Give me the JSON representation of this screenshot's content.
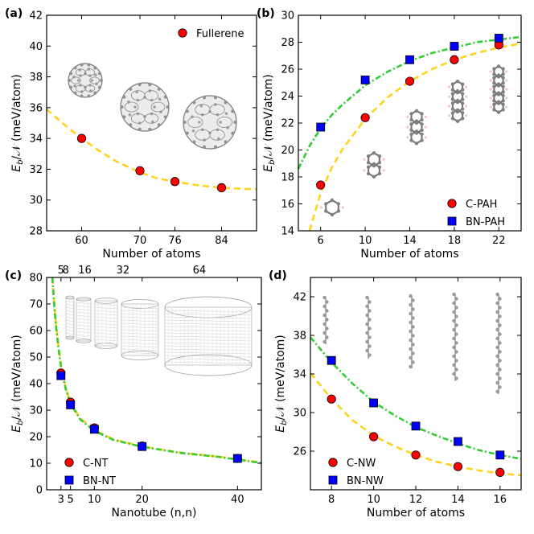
{
  "panels": [
    {
      "id": "a",
      "label": "(a)",
      "xlabel": "Number of atoms",
      "ylabel_main": "E",
      "ylabel_sub": "b",
      "ylabel_rest": "/𝒩 (meV/atom)",
      "xlim": [
        54,
        90
      ],
      "ylim": [
        28,
        42
      ],
      "xticks": [
        60,
        70,
        76,
        84
      ],
      "yticks": [
        28,
        30,
        32,
        34,
        36,
        38,
        40,
        42
      ],
      "legend_pos": "top-right",
      "series": [
        {
          "name": "Fullerene",
          "marker": "circle",
          "color": "#ff0000",
          "x": [
            60,
            70,
            76,
            84
          ],
          "y": [
            34.0,
            31.9,
            31.2,
            30.8
          ]
        }
      ],
      "fits": [
        {
          "color": "#ffd21e",
          "style": "dashed",
          "x": [
            54,
            57,
            60,
            63,
            66,
            70,
            73,
            76,
            80,
            84,
            88,
            90
          ],
          "y": [
            35.9,
            34.9,
            34.0,
            33.2,
            32.5,
            31.8,
            31.4,
            31.2,
            30.95,
            30.8,
            30.72,
            30.7
          ]
        }
      ]
    },
    {
      "id": "b",
      "label": "(b)",
      "xlabel": "Number of atoms",
      "ylabel_main": "E",
      "ylabel_sub": "b",
      "ylabel_rest": "/𝒩 (meV/atom)",
      "xlim": [
        4,
        24
      ],
      "ylim": [
        14,
        30
      ],
      "xticks": [
        6,
        10,
        14,
        18,
        22
      ],
      "yticks": [
        14,
        16,
        18,
        20,
        22,
        24,
        26,
        28,
        30
      ],
      "legend_pos": "bottom-right",
      "series": [
        {
          "name": "C-PAH",
          "marker": "circle",
          "color": "#ff0000",
          "x": [
            6,
            10,
            14,
            18,
            22
          ],
          "y": [
            17.4,
            22.4,
            25.1,
            26.7,
            27.8
          ]
        },
        {
          "name": "BN-PAH",
          "marker": "square",
          "color": "#0000ff",
          "x": [
            6,
            10,
            14,
            18,
            22
          ],
          "y": [
            21.7,
            25.2,
            26.7,
            27.7,
            28.3
          ]
        }
      ],
      "fits": [
        {
          "color": "#ffd21e",
          "style": "dashed",
          "x": [
            5,
            6,
            7,
            8,
            10,
            12,
            14,
            16,
            18,
            20,
            22,
            24
          ],
          "y": [
            14.0,
            16.8,
            18.7,
            20.1,
            22.3,
            23.9,
            25.1,
            26.0,
            26.7,
            27.2,
            27.6,
            27.9
          ]
        },
        {
          "color": "#33cc33",
          "style": "dashdot",
          "x": [
            4,
            5,
            6,
            7,
            8,
            10,
            12,
            14,
            16,
            18,
            20,
            22,
            24
          ],
          "y": [
            18.6,
            20.3,
            21.6,
            22.6,
            23.4,
            24.8,
            25.8,
            26.6,
            27.2,
            27.6,
            28.0,
            28.2,
            28.4
          ]
        }
      ]
    },
    {
      "id": "c",
      "label": "(c)",
      "xlabel": "Nanotube (n,n)",
      "ylabel_main": "E",
      "ylabel_sub": "b",
      "ylabel_rest": "/𝒩 (meV/atom)",
      "xlim": [
        0,
        45
      ],
      "ylim": [
        0,
        80
      ],
      "xticks": [
        3,
        5,
        10,
        20,
        40
      ],
      "yticks": [
        0,
        10,
        20,
        30,
        40,
        50,
        60,
        70,
        80
      ],
      "top_ticks_x": [
        3,
        4,
        8,
        16,
        32
      ],
      "top_ticks_label": [
        "5",
        "8",
        "16",
        "32",
        "64"
      ],
      "top_tick_pos": [
        3,
        4,
        8,
        16,
        32
      ],
      "legend_pos": "bottom-left",
      "series": [
        {
          "name": "C-NT",
          "marker": "circle",
          "color": "#ff0000",
          "x": [
            3,
            5,
            10,
            20,
            40
          ],
          "y": [
            44.0,
            33.0,
            23.3,
            16.5,
            11.8
          ]
        },
        {
          "name": "BN-NT",
          "marker": "square",
          "color": "#0000ff",
          "x": [
            3,
            5,
            10,
            20,
            40
          ],
          "y": [
            43.0,
            32.0,
            22.8,
            16.3,
            11.8
          ]
        }
      ],
      "fits": [
        {
          "color": "#ffd21e",
          "style": "dashed",
          "x": [
            1.2,
            1.6,
            2,
            2.5,
            3,
            4,
            5,
            7,
            10,
            14,
            20,
            28,
            36,
            45
          ],
          "y": [
            80,
            70,
            62,
            54,
            47,
            38.5,
            33,
            27,
            22.5,
            19,
            16.3,
            14,
            12.5,
            10.2
          ]
        },
        {
          "color": "#33cc33",
          "style": "dashdot",
          "x": [
            1.2,
            1.6,
            2,
            2.5,
            3,
            4,
            5,
            7,
            10,
            14,
            20,
            28,
            36,
            45
          ],
          "y": [
            80,
            69,
            61,
            53,
            46.5,
            38,
            32.5,
            26.6,
            22.2,
            18.8,
            16.2,
            13.9,
            12.4,
            10.1
          ]
        }
      ]
    },
    {
      "id": "d",
      "label": "(d)",
      "xlabel": "Number of atoms",
      "ylabel_main": "E",
      "ylabel_sub": "b",
      "ylabel_rest": "/𝒩 (meV/atom)",
      "xlim": [
        7,
        17
      ],
      "ylim": [
        22,
        44
      ],
      "xticks": [
        8,
        10,
        12,
        14,
        16
      ],
      "yticks": [
        26,
        30,
        34,
        38,
        42
      ],
      "legend_pos": "bottom-left",
      "series": [
        {
          "name": "C-NW",
          "marker": "circle",
          "color": "#ff0000",
          "x": [
            8,
            10,
            12,
            14,
            16
          ],
          "y": [
            31.4,
            27.5,
            25.6,
            24.4,
            23.8
          ]
        },
        {
          "name": "BN-NW",
          "marker": "square",
          "color": "#0000ff",
          "x": [
            8,
            10,
            12,
            14,
            16
          ],
          "y": [
            35.4,
            31.0,
            28.6,
            27.0,
            25.6
          ]
        }
      ],
      "fits": [
        {
          "color": "#ffd21e",
          "style": "dashed",
          "x": [
            7,
            8,
            9,
            10,
            11,
            12,
            13,
            14,
            15,
            16,
            17
          ],
          "y": [
            34.1,
            31.4,
            29.2,
            27.6,
            26.5,
            25.6,
            24.9,
            24.4,
            24.0,
            23.7,
            23.5
          ]
        },
        {
          "color": "#33cc33",
          "style": "dashdot",
          "x": [
            7,
            8,
            9,
            10,
            11,
            12,
            13,
            14,
            15,
            16,
            17
          ],
          "y": [
            37.8,
            35.2,
            33.0,
            31.1,
            29.7,
            28.5,
            27.6,
            26.8,
            26.1,
            25.6,
            25.2
          ]
        }
      ]
    }
  ],
  "chart_data": [
    {
      "type": "scatter",
      "title": "(a)",
      "xlabel": "Number of atoms",
      "ylabel": "Eb/N (meV/atom)",
      "xlim": [
        54,
        90
      ],
      "ylim": [
        28,
        42
      ],
      "series": [
        {
          "name": "Fullerene",
          "x": [
            60,
            70,
            76,
            84
          ],
          "y": [
            34.0,
            31.9,
            31.2,
            30.8
          ]
        }
      ]
    },
    {
      "type": "scatter",
      "title": "(b)",
      "xlabel": "Number of atoms",
      "ylabel": "Eb/N (meV/atom)",
      "xlim": [
        4,
        24
      ],
      "ylim": [
        14,
        30
      ],
      "series": [
        {
          "name": "C-PAH",
          "x": [
            6,
            10,
            14,
            18,
            22
          ],
          "y": [
            17.4,
            22.4,
            25.1,
            26.7,
            27.8
          ]
        },
        {
          "name": "BN-PAH",
          "x": [
            6,
            10,
            14,
            18,
            22
          ],
          "y": [
            21.7,
            25.2,
            26.7,
            27.7,
            28.3
          ]
        }
      ]
    },
    {
      "type": "scatter",
      "title": "(c)",
      "xlabel": "Nanotube (n,n)",
      "ylabel": "Eb/N (meV/atom)",
      "xlim": [
        0,
        45
      ],
      "ylim": [
        0,
        80
      ],
      "series": [
        {
          "name": "C-NT",
          "x": [
            3,
            5,
            10,
            20,
            40
          ],
          "y": [
            44.0,
            33.0,
            23.3,
            16.5,
            11.8
          ]
        },
        {
          "name": "BN-NT",
          "x": [
            3,
            5,
            10,
            20,
            40
          ],
          "y": [
            43.0,
            32.0,
            22.8,
            16.3,
            11.8
          ]
        }
      ]
    },
    {
      "type": "scatter",
      "title": "(d)",
      "xlabel": "Number of atoms",
      "ylabel": "Eb/N (meV/atom)",
      "xlim": [
        7,
        17
      ],
      "ylim": [
        22,
        44
      ],
      "series": [
        {
          "name": "C-NW",
          "x": [
            8,
            10,
            12,
            14,
            16
          ],
          "y": [
            31.4,
            27.5,
            25.6,
            24.4,
            23.8
          ]
        },
        {
          "name": "BN-NW",
          "x": [
            8,
            10,
            12,
            14,
            16
          ],
          "y": [
            35.4,
            31.0,
            28.6,
            27.0,
            25.6
          ]
        }
      ]
    }
  ]
}
